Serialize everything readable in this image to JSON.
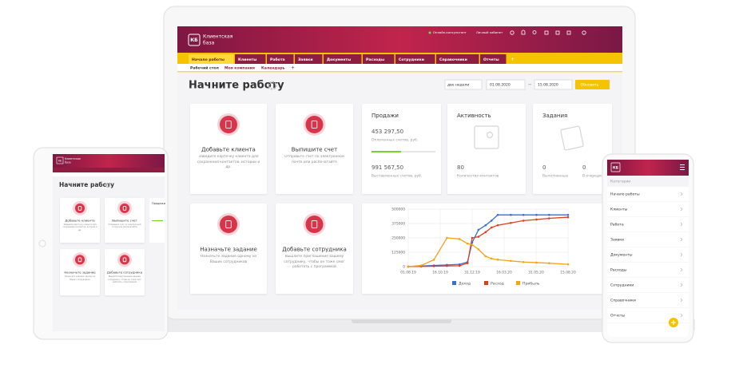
{
  "app": {
    "logo": "КБ",
    "brand": [
      "Клиентская",
      "база"
    ]
  },
  "topbar": [
    "Онлайн-консультант",
    "Личный кабинет"
  ],
  "tabs": [
    "Начало работы",
    "Клиенты",
    "Работа",
    "Заявки",
    "Документы",
    "Расходы",
    "Сотрудники",
    "Справочники",
    "Отчеты"
  ],
  "subtabs": [
    "Рабочий стол",
    "Моя компания",
    "Календарь"
  ],
  "page_title": "Начните работу",
  "period": {
    "select": "две недели",
    "from": "01.08.2020",
    "to": "15.08.2020",
    "button": "Обновить"
  },
  "cards": [
    {
      "title": "Добавьте клиента",
      "text": "Заведите карточку клиента для сохранения контактов, истории и др."
    },
    {
      "title": "Выпишите счет",
      "text": "Отправьте счет по электронной почте или распечатайте"
    },
    {
      "title": "Назначьте задание",
      "text": "Назначьте задание одному из Ваших сотрудников"
    },
    {
      "title": "Добавьте сотрудника",
      "text": "Вышлите приглашение вашему сотруднику, чтобы он тоже смог работать с программой"
    }
  ],
  "sales": {
    "title": "Продажи",
    "paid": "453 297,50",
    "paid_label": "Оплаченных счетов, руб.",
    "issued": "991 567,50",
    "issued_label": "Выставленных счетов, руб."
  },
  "activity": {
    "title": "Активность",
    "count": 80,
    "label": "Количество контактов"
  },
  "tasks": {
    "title": "Задания",
    "done": 0,
    "done_label": "Выполненные",
    "queue": 0,
    "queue_label": "В очереди"
  },
  "chart": {
    "type": "line",
    "x": [
      "01.08.19",
      "01.09.19",
      "01.10.19",
      "01.11.19",
      "01.12.19",
      "20.12.19",
      "31.12.19",
      "15.01.20",
      "01.02.20",
      "15.02.20",
      "01.03.20",
      "01.04.20",
      "01.05.20",
      "01.06.20",
      "01.07.20",
      "15.08.20"
    ],
    "series": [
      {
        "name": "Доход",
        "color": "#3b6fd4",
        "values": [
          0,
          5000,
          10000,
          15000,
          20000,
          40000,
          210000,
          320000,
          360000,
          400000,
          450000,
          450000,
          450000,
          450000,
          450000,
          450000
        ]
      },
      {
        "name": "Расход",
        "color": "#d9401f",
        "values": [
          0,
          2000,
          4000,
          6000,
          8000,
          30000,
          250000,
          260000,
          300000,
          340000,
          360000,
          380000,
          400000,
          410000,
          420000,
          430000
        ]
      },
      {
        "name": "Прибыль",
        "color": "#f5a31a",
        "values": [
          0,
          10000,
          60000,
          250000,
          240000,
          200000,
          190000,
          150000,
          90000,
          70000,
          60000,
          50000,
          40000,
          35000,
          30000,
          20000
        ]
      }
    ],
    "xlim": [
      "01.08.19",
      "15.08.20"
    ],
    "xticks": [
      "01.08.19",
      "16.10.19",
      "31.12.19",
      "16.03.20",
      "31.05.20",
      "15.08.20"
    ],
    "ylim": [
      0,
      500000
    ],
    "yticks": [
      0,
      125000,
      250000,
      375000,
      500000
    ],
    "grid": true
  },
  "mobile": {
    "section": "Категории"
  }
}
